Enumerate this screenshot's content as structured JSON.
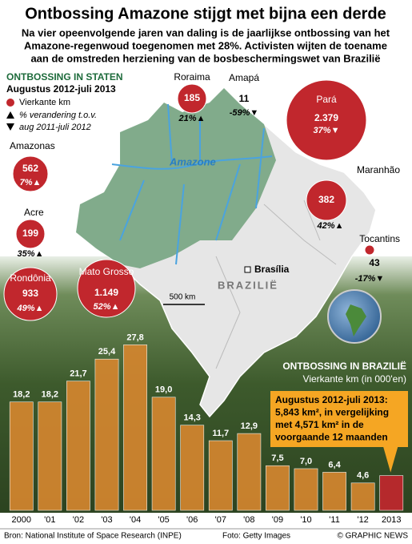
{
  "title": "Ontbossing Amazone stijgt met bijna een derde",
  "subtitle": [
    "Na vier opeenvolgende jaren van daling is de jaarlijkse ontbossing van het",
    "Amazone-regenwoud toegenomen met 28%. Activisten wijten de toename",
    "aan de omstreden herziening van de bosbeschermingswet van Brazilië"
  ],
  "map": {
    "heading": "ONTBOSSING IN STATEN",
    "period": "Augustus 2012-juli 2013",
    "legend": [
      "Vierkante km",
      "% verandering t.o.v.",
      "aug 2011-juli 2012"
    ],
    "states": [
      {
        "name": "Roraima",
        "value": "185",
        "change": "21%▲"
      },
      {
        "name": "Amapá",
        "value": "11",
        "change": "-59%▼"
      },
      {
        "name": "Pará",
        "value": "2.379",
        "change": "37%▼"
      },
      {
        "name": "Amazonas",
        "value": "562",
        "change": "7%▲"
      },
      {
        "name": "Maranhão",
        "value": "382",
        "change": "42%▲"
      },
      {
        "name": "Acre",
        "value": "199",
        "change": "35%▲"
      },
      {
        "name": "Tocantins",
        "value": "43",
        "change": "-17%▼"
      },
      {
        "name": "Rondônia",
        "value": "933",
        "change": "49%▲"
      },
      {
        "name": "Mato Grosso",
        "value": "1.149",
        "change": "52%▲"
      }
    ],
    "river": "Amazone",
    "capital": "Brasília",
    "country": "BRAZILIË",
    "scale": "500 km"
  },
  "chart_data": {
    "type": "bar",
    "title": "ONTBOSSING IN BRAZILIË",
    "subtitle": "Vierkante km (in 000'en)",
    "categories": [
      "2000",
      "'01",
      "'02",
      "'03",
      "'04",
      "'05",
      "'06",
      "'07",
      "'08",
      "'09",
      "'10",
      "'11",
      "'12",
      "2013"
    ],
    "values": [
      18.2,
      18.2,
      21.7,
      25.4,
      27.8,
      19.0,
      14.3,
      11.7,
      12.9,
      7.5,
      7.0,
      6.4,
      4.6,
      5.843
    ],
    "value_labels": [
      "18,2",
      "18,2",
      "21,7",
      "25,4",
      "27,8",
      "19,0",
      "14,3",
      "11,7",
      "12,9",
      "7,5",
      "7,0",
      "6,4",
      "4,6",
      null
    ],
    "colors": [
      "#d4862f",
      "#d4862f",
      "#d4862f",
      "#d4862f",
      "#d4862f",
      "#d4862f",
      "#d4862f",
      "#d4862f",
      "#d4862f",
      "#d4862f",
      "#d4862f",
      "#d4862f",
      "#d4862f",
      "#c1272d"
    ],
    "ylim": [
      0,
      30
    ],
    "annotation": [
      "Augustus 2012-juli 2013:",
      "5,843 km², in vergelijking",
      "met 4,571 km² in de",
      "voorgaande 12 maanden"
    ]
  },
  "footer": {
    "source": "Bron: National Institute of Space Research (INPE)",
    "photo": "Foto: Getty Images",
    "credit": "© GRAPHIC NEWS"
  }
}
